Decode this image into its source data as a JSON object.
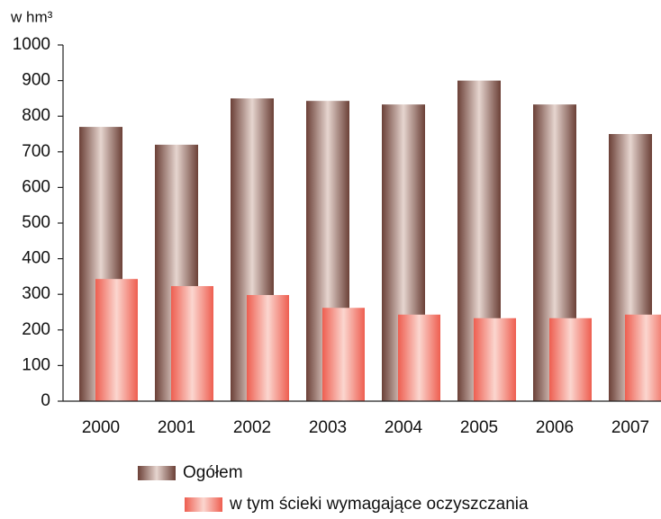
{
  "chart_data": {
    "type": "bar",
    "ylabel": "w hm³",
    "categories": [
      "2000",
      "2001",
      "2002",
      "2003",
      "2004",
      "2005",
      "2006",
      "2007"
    ],
    "series": [
      {
        "name": "Ogółem",
        "color": "#6b4037",
        "values": [
          770,
          720,
          850,
          843,
          833,
          900,
          833,
          750
        ]
      },
      {
        "name": "w tym ścieki wymagające oczyszczania",
        "color": "#ee5e50",
        "values": [
          343,
          323,
          298,
          262,
          243,
          233,
          233,
          243
        ]
      }
    ],
    "ylim": [
      0,
      1000
    ],
    "yticks": [
      0,
      100,
      200,
      300,
      400,
      500,
      600,
      700,
      800,
      900,
      1000
    ],
    "grid": false
  }
}
